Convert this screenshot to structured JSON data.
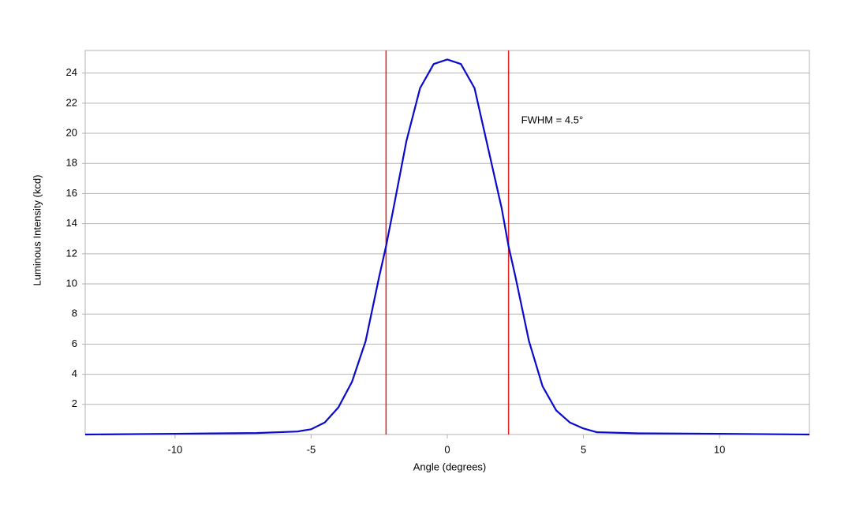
{
  "chart_data": {
    "type": "line",
    "x_label": "Angle (degrees)",
    "y_label": "Luminous Intensity (kcd)",
    "x": [
      -13.3,
      -10,
      -7,
      -5.5,
      -5,
      -4.5,
      -4,
      -3.5,
      -3,
      -2.5,
      -2.25,
      -2,
      -1.5,
      -1,
      -0.5,
      0,
      0.5,
      1,
      1.5,
      2,
      2.25,
      2.5,
      3,
      3.5,
      4,
      4.5,
      5,
      5.5,
      7,
      10,
      13.3
    ],
    "series": [
      {
        "name": "Luminous Intensity",
        "color": "#0a0acc",
        "values": [
          0,
          0.05,
          0.1,
          0.2,
          0.35,
          0.8,
          1.8,
          3.5,
          6.2,
          10.5,
          12.5,
          14.8,
          19.5,
          23,
          24.6,
          24.9,
          24.6,
          23,
          19,
          15,
          12.5,
          10.5,
          6.2,
          3.2,
          1.6,
          0.8,
          0.4,
          0.15,
          0.08,
          0.05,
          0
        ]
      }
    ],
    "vlines": {
      "values": [
        -2.25,
        2.25
      ],
      "color": "#e02020"
    },
    "annotation": "FWHM = 4.5°",
    "xlim": [
      -13.3,
      13.3
    ],
    "ylim": [
      0,
      25.5
    ],
    "xticks": [
      -10,
      -5,
      0,
      5,
      10
    ],
    "yticks": [
      2,
      4,
      6,
      8,
      10,
      12,
      14,
      16,
      18,
      20,
      22,
      24
    ],
    "grid": true
  }
}
